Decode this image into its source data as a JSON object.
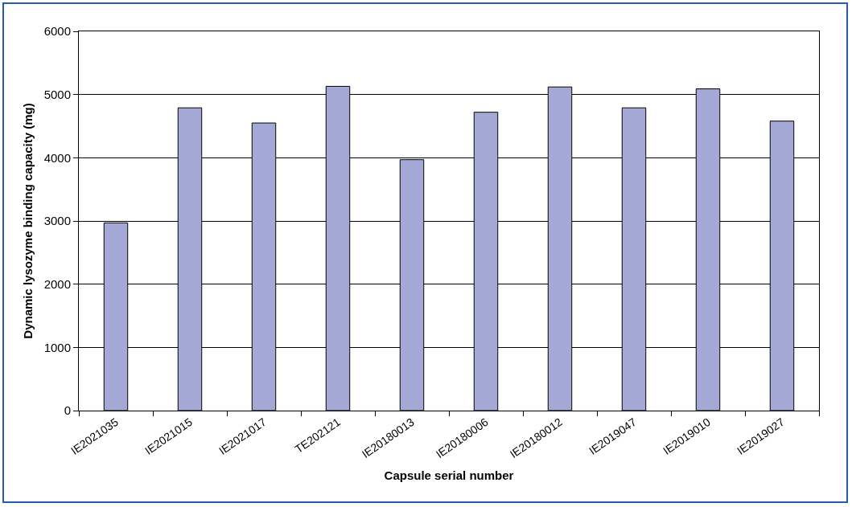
{
  "chart_data": {
    "type": "bar",
    "xlabel": "Capsule serial number",
    "ylabel": "Dynamic lysozyme binding capacity (mg)",
    "categories": [
      "IE2021035",
      "IE2021015",
      "IE2021017",
      "TE202121",
      "IE20180013",
      "IE20180006",
      "IE20180012",
      "IE2019047",
      "IE2019010",
      "IE2019027"
    ],
    "values": [
      2970,
      4790,
      4550,
      5130,
      3970,
      4720,
      5120,
      4790,
      5090,
      4580
    ],
    "color": "#a3a9d4",
    "ylim": [
      0,
      6000
    ],
    "yticks": [
      0,
      1000,
      2000,
      3000,
      4000,
      5000,
      6000
    ],
    "grid": "y"
  }
}
